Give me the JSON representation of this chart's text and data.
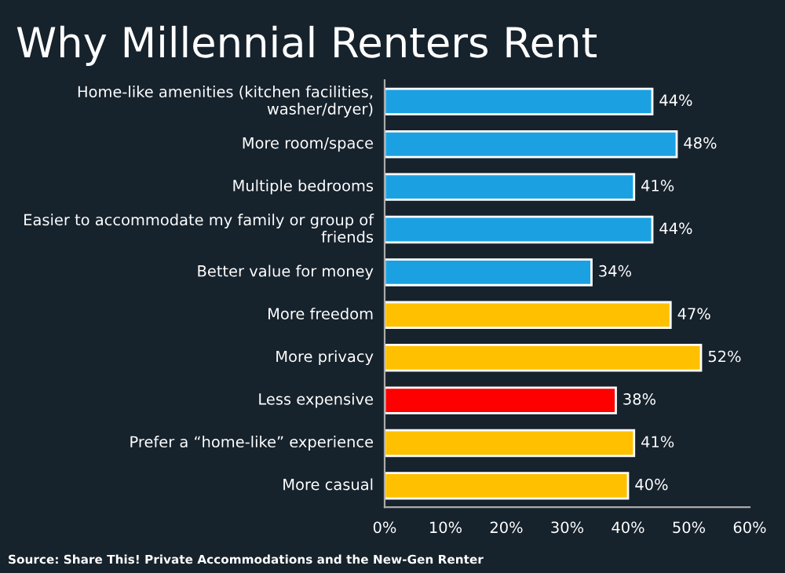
{
  "chart_data": {
    "type": "bar",
    "orientation": "horizontal",
    "title": "Why Millennial Renters Rent",
    "categories": [
      "Home-like amenities (kitchen facilities, washer/dryer)",
      "More room/space",
      "Multiple bedrooms",
      "Easier to accommodate my family or group of friends",
      "Better value for money",
      "More freedom",
      "More privacy",
      "Less expensive",
      "Prefer a “home-like” experience",
      "More casual"
    ],
    "values": [
      44,
      48,
      41,
      44,
      34,
      47,
      52,
      38,
      41,
      40
    ],
    "colors": [
      "#1ba1e2",
      "#1ba1e2",
      "#1ba1e2",
      "#1ba1e2",
      "#1ba1e2",
      "#ffc000",
      "#ffc000",
      "#ff0000",
      "#ffc000",
      "#ffc000"
    ],
    "value_labels": [
      "44%",
      "48%",
      "41%",
      "44%",
      "34%",
      "47%",
      "52%",
      "38%",
      "41%",
      "40%"
    ],
    "xlim": [
      0,
      60
    ],
    "xticks": [
      {
        "value": 0,
        "label": "0%"
      },
      {
        "value": 10,
        "label": "10%"
      },
      {
        "value": 20,
        "label": "20%"
      },
      {
        "value": 30,
        "label": "30%"
      },
      {
        "value": 40,
        "label": "40%"
      },
      {
        "value": 50,
        "label": "50%"
      },
      {
        "value": 60,
        "label": "60%"
      }
    ],
    "grid": false,
    "legend": false,
    "annotations": [
      "Source: Share This! Private Accommodations and the New-Gen Renter"
    ]
  }
}
